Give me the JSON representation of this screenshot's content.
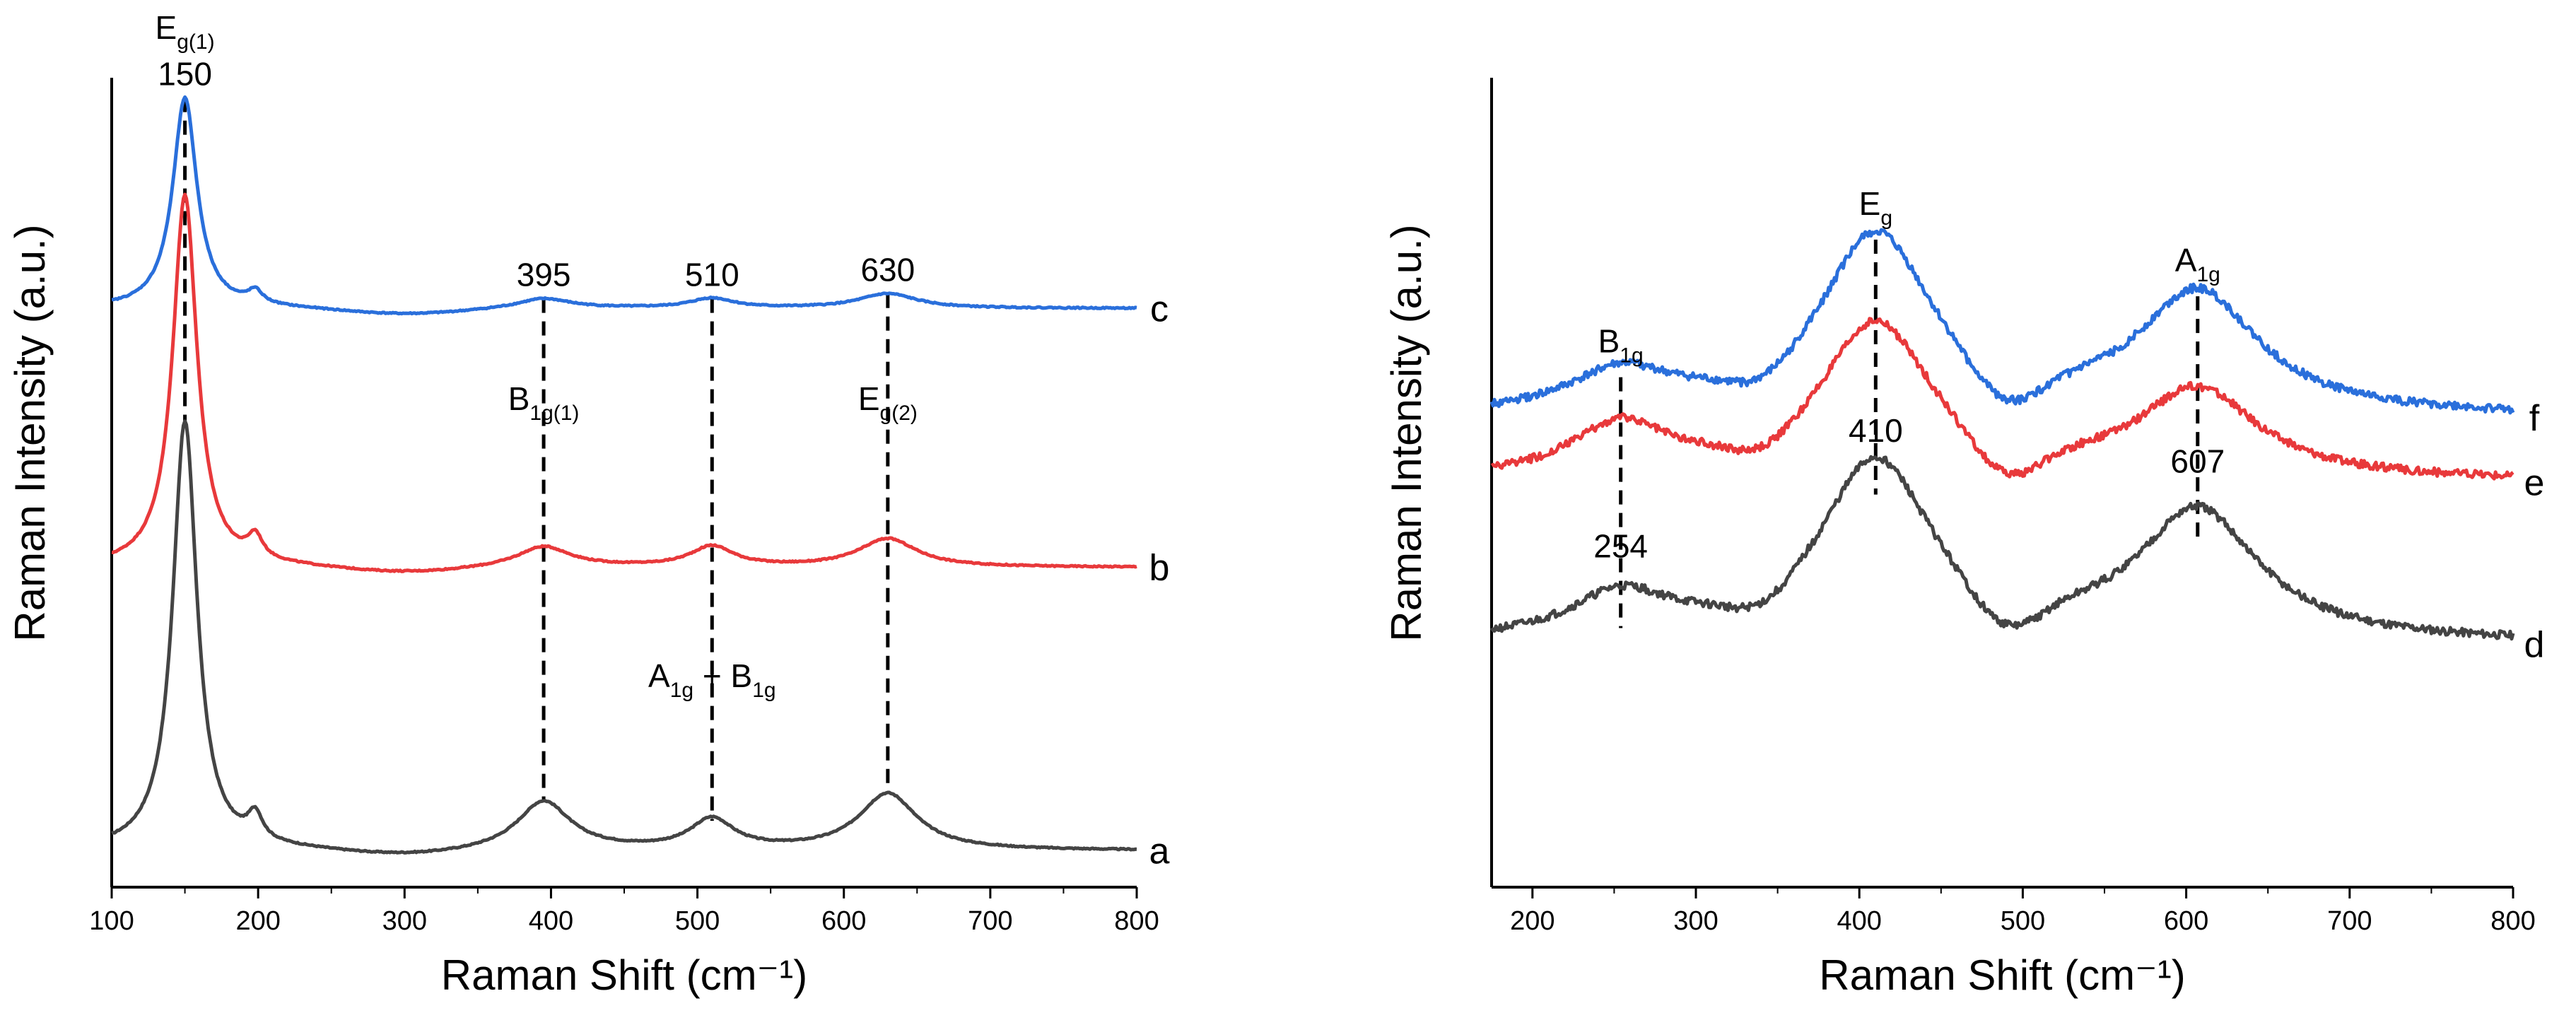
{
  "chart_data": [
    {
      "type": "line",
      "panel": "left",
      "xlabel": "Raman Shift (cm⁻¹)",
      "ylabel": "Raman Intensity (a.u.)",
      "xlim": [
        100,
        800
      ],
      "ylim": [
        0,
        1
      ],
      "xticks": [
        100,
        200,
        300,
        400,
        500,
        600,
        700,
        800
      ],
      "series": [
        {
          "name": "a",
          "color": "#444444",
          "baseline": 0.045,
          "peak_heights": [
            0.53,
            0.06,
            0.037,
            0.07
          ]
        },
        {
          "name": "b",
          "color": "#e8393b",
          "baseline": 0.395,
          "peak_heights": [
            0.46,
            0.025,
            0.025,
            0.035
          ]
        },
        {
          "name": "c",
          "color": "#2a6fdb",
          "baseline": 0.715,
          "peak_heights": [
            0.26,
            0.012,
            0.012,
            0.018
          ]
        }
      ],
      "peak_positions": [
        150,
        395,
        510,
        630
      ],
      "peak_labels": [
        "150",
        "395",
        "510",
        "630"
      ],
      "mode_labels": [
        {
          "main": "E",
          "sub": "g(1)"
        },
        {
          "main": "B",
          "sub": "1g(1)"
        },
        {
          "main": "A",
          "sub": "1g",
          "joiner": " + ",
          "main2": "B",
          "sub2": "1g"
        },
        {
          "main": "E",
          "sub": "g(2)"
        }
      ]
    },
    {
      "type": "line",
      "panel": "right",
      "xlabel": "Raman Shift (cm⁻¹)",
      "ylabel": "Raman Intensity (a.u.)",
      "xlim": [
        175,
        800
      ],
      "ylim": [
        0,
        1
      ],
      "xticks": [
        200,
        300,
        400,
        500,
        600,
        700,
        800
      ],
      "series": [
        {
          "name": "d",
          "color": "#444444",
          "baseline": 0.3,
          "peak_heights": [
            0.055,
            0.22,
            0.16
          ]
        },
        {
          "name": "e",
          "color": "#e8393b",
          "baseline": 0.5,
          "peak_heights": [
            0.065,
            0.19,
            0.11
          ]
        },
        {
          "name": "f",
          "color": "#2a6fdb",
          "baseline": 0.58,
          "peak_heights": [
            0.05,
            0.22,
            0.15
          ]
        }
      ],
      "peak_positions": [
        254,
        410,
        607
      ],
      "peak_labels": [
        "254",
        "410",
        "607"
      ],
      "mode_labels": [
        {
          "main": "B",
          "sub": "1g"
        },
        {
          "main": "E",
          "sub": "g"
        },
        {
          "main": "A",
          "sub": "1g"
        }
      ]
    }
  ]
}
